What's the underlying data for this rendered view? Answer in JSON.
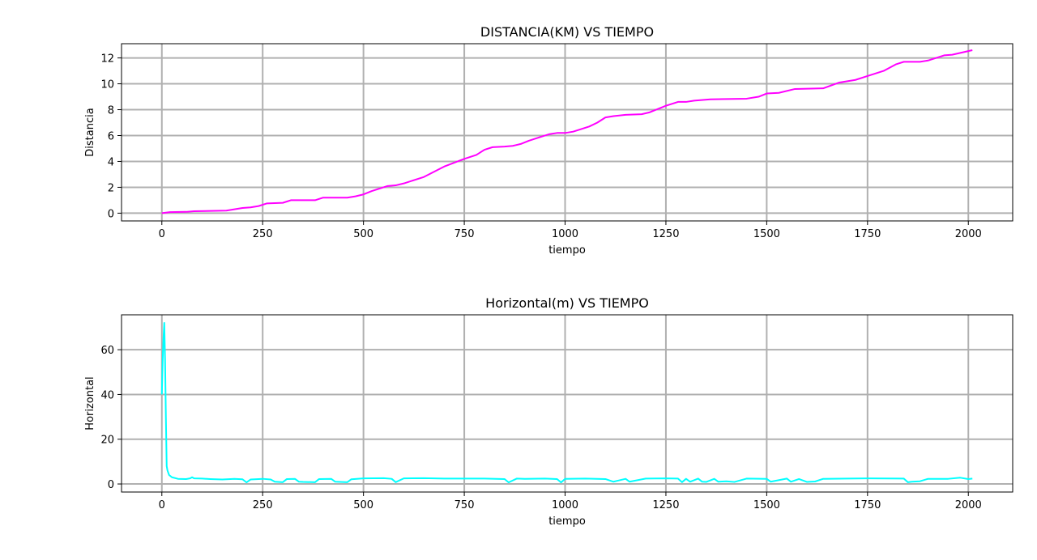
{
  "chart_data": [
    {
      "type": "line",
      "title": "DISTANCIA(KM) VS TIEMPO",
      "xlabel": "tiempo",
      "ylabel": "Distancia",
      "xlim": [
        -100,
        2110
      ],
      "ylim": [
        -0.6,
        13.1
      ],
      "xticks": [
        0,
        250,
        500,
        750,
        1000,
        1250,
        1500,
        1750,
        2000
      ],
      "yticks": [
        0,
        2,
        4,
        6,
        8,
        10,
        12
      ],
      "grid": true,
      "series": [
        {
          "color": "#ff00ff",
          "x": [
            0,
            20,
            60,
            80,
            160,
            180,
            200,
            220,
            240,
            260,
            300,
            320,
            380,
            400,
            460,
            480,
            500,
            520,
            560,
            580,
            600,
            650,
            700,
            750,
            780,
            800,
            820,
            850,
            870,
            890,
            910,
            940,
            960,
            980,
            1000,
            1020,
            1060,
            1080,
            1100,
            1120,
            1150,
            1190,
            1210,
            1250,
            1280,
            1300,
            1320,
            1360,
            1450,
            1480,
            1500,
            1530,
            1570,
            1640,
            1680,
            1720,
            1750,
            1790,
            1820,
            1840,
            1880,
            1900,
            1940,
            1960,
            2010
          ],
          "y": [
            0.0,
            0.08,
            0.1,
            0.15,
            0.2,
            0.3,
            0.4,
            0.45,
            0.55,
            0.75,
            0.8,
            1.0,
            1.0,
            1.2,
            1.2,
            1.3,
            1.45,
            1.7,
            2.1,
            2.15,
            2.3,
            2.8,
            3.6,
            4.2,
            4.5,
            4.9,
            5.1,
            5.15,
            5.2,
            5.35,
            5.6,
            5.9,
            6.1,
            6.2,
            6.2,
            6.3,
            6.7,
            7.0,
            7.4,
            7.5,
            7.6,
            7.65,
            7.8,
            8.3,
            8.6,
            8.6,
            8.7,
            8.8,
            8.85,
            9.0,
            9.25,
            9.3,
            9.6,
            9.65,
            10.1,
            10.3,
            10.6,
            11.0,
            11.5,
            11.7,
            11.7,
            11.8,
            12.2,
            12.25,
            12.6
          ]
        }
      ]
    },
    {
      "type": "line",
      "title": "Horizontal(m) VS TIEMPO",
      "xlabel": "tiempo",
      "ylabel": "Horizontal",
      "xlim": [
        -100,
        2110
      ],
      "ylim": [
        -3.6,
        75.6
      ],
      "xticks": [
        0,
        250,
        500,
        750,
        1000,
        1250,
        1500,
        1750,
        2000
      ],
      "yticks": [
        0,
        20,
        40,
        60
      ],
      "grid": true,
      "series": [
        {
          "color": "#00ffff",
          "x": [
            0,
            2,
            4,
            6,
            8,
            10,
            12,
            14,
            18,
            25,
            40,
            60,
            70,
            75,
            80,
            100,
            120,
            150,
            180,
            200,
            210,
            220,
            250,
            270,
            280,
            300,
            310,
            330,
            340,
            350,
            380,
            390,
            420,
            430,
            460,
            470,
            500,
            550,
            570,
            580,
            600,
            650,
            700,
            800,
            850,
            860,
            880,
            900,
            950,
            980,
            990,
            1000,
            1050,
            1100,
            1120,
            1150,
            1160,
            1200,
            1250,
            1280,
            1290,
            1300,
            1310,
            1330,
            1340,
            1350,
            1370,
            1380,
            1400,
            1420,
            1450,
            1500,
            1510,
            1550,
            1560,
            1580,
            1600,
            1620,
            1640,
            1700,
            1750,
            1840,
            1850,
            1860,
            1880,
            1900,
            1950,
            1980,
            2000,
            2010
          ],
          "y": [
            40,
            55,
            65,
            72,
            55,
            30,
            8,
            6,
            4,
            3,
            2.3,
            2.2,
            2.5,
            3.0,
            2.5,
            2.4,
            2.2,
            2.0,
            2.3,
            2.1,
            0.7,
            2.0,
            2.3,
            2.0,
            1.0,
            0.8,
            2.2,
            2.3,
            1.0,
            0.9,
            0.8,
            2.2,
            2.3,
            1.0,
            0.8,
            2.1,
            2.5,
            2.6,
            2.3,
            0.8,
            2.5,
            2.6,
            2.4,
            2.4,
            2.2,
            0.7,
            2.4,
            2.3,
            2.4,
            2.2,
            0.7,
            2.3,
            2.4,
            2.2,
            1.0,
            2.3,
            1.0,
            2.4,
            2.5,
            2.4,
            0.8,
            2.3,
            1.0,
            2.4,
            1.0,
            0.9,
            2.3,
            1.0,
            1.2,
            0.9,
            2.4,
            2.3,
            1.0,
            2.4,
            1.0,
            2.2,
            0.9,
            1.1,
            2.3,
            2.4,
            2.5,
            2.4,
            0.8,
            1.0,
            1.2,
            2.3,
            2.3,
            2.8,
            2.2,
            2.4
          ]
        }
      ]
    }
  ]
}
